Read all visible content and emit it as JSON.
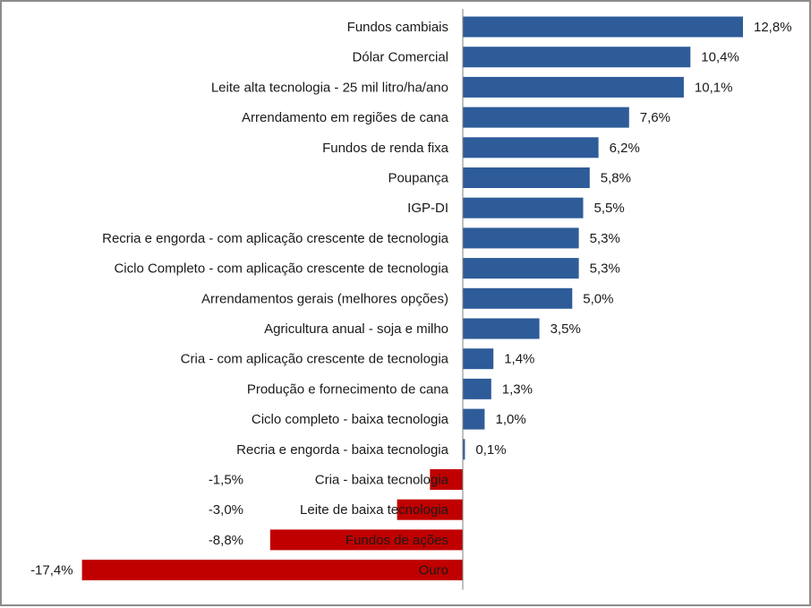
{
  "chart_data": {
    "type": "bar",
    "orientation": "horizontal",
    "categories": [
      "Fundos cambiais",
      "Dólar Comercial",
      "Leite alta tecnologia - 25 mil litro/ha/ano",
      "Arrendamento em regiões de cana",
      "Fundos de renda fixa",
      "Poupança",
      "IGP-DI",
      "Recria e engorda - com aplicação crescente de tecnologia",
      "Ciclo Completo - com aplicação crescente de tecnologia",
      "Arrendamentos gerais (melhores opções)",
      "Agricultura anual - soja e milho",
      "Cria - com aplicação crescente de tecnologia",
      "Produção e fornecimento de cana",
      "Ciclo completo - baixa tecnologia",
      "Recria e engorda - baixa tecnologia",
      "Cria - baixa tecnologia",
      "Leite de baixa tecnologia",
      "Fundos de ações",
      "Ouro"
    ],
    "values": [
      12.8,
      10.4,
      10.1,
      7.6,
      6.2,
      5.8,
      5.5,
      5.3,
      5.3,
      5.0,
      3.5,
      1.4,
      1.3,
      1.0,
      0.1,
      -1.5,
      -3.0,
      -8.8,
      -17.4
    ],
    "value_labels": [
      "12,8%",
      "10,4%",
      "10,1%",
      "7,6%",
      "6,2%",
      "5,8%",
      "5,5%",
      "5,3%",
      "5,3%",
      "5,0%",
      "3,5%",
      "1,4%",
      "1,3%",
      "1,0%",
      "0,1%",
      "-1,5%",
      "-3,0%",
      "-8,8%",
      "-17,4%"
    ],
    "title": "",
    "xlabel": "",
    "ylabel": "",
    "xlim": [
      -17.4,
      12.8
    ],
    "grid": false,
    "legend": "none",
    "colors": {
      "positive": "#2e5c99",
      "negative": "#c00000",
      "axis": "#808080",
      "frame": "#8c8c8c"
    }
  }
}
